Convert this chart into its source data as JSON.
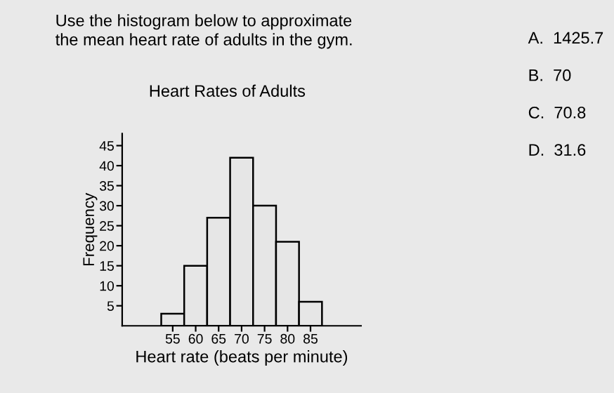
{
  "chart_data": {
    "type": "histogram",
    "title": "Heart Rates of Adults",
    "xlabel": "Heart rate (beats per minute)",
    "ylabel": "Frequency",
    "bins": [
      52.5,
      57.5,
      62.5,
      67.5,
      72.5,
      77.5,
      82.5,
      87.5
    ],
    "values": [
      3,
      15,
      27,
      42,
      30,
      21,
      6
    ],
    "color": "#e6e6e6",
    "xlim": [
      44,
      96
    ],
    "xticks": [
      55,
      60,
      65,
      70,
      75,
      80,
      85
    ],
    "ylim": [
      0,
      48
    ],
    "yticks": [
      5,
      10,
      15,
      20,
      25,
      30,
      35,
      40,
      45
    ],
    "grid": false,
    "annotations": [
      "Use the histogram below to approximate\nthe mean heart rate of adults in the gym.",
      "A.  1425.7",
      "B.  70",
      "C.  70.8",
      "D.  31.6"
    ]
  }
}
